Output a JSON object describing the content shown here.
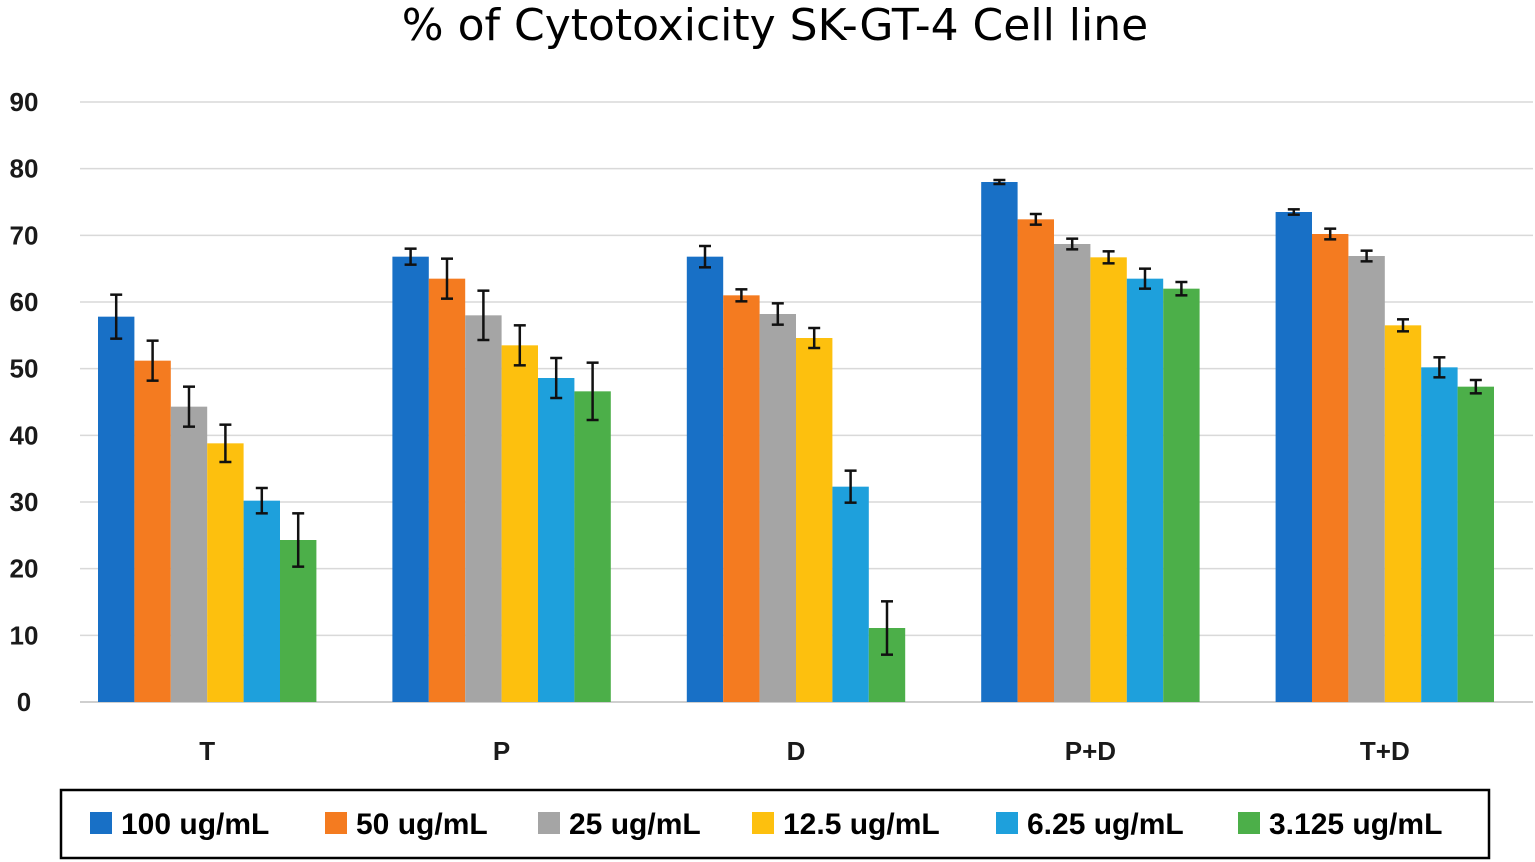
{
  "chart_data": {
    "type": "bar",
    "title": "% of Cytotoxicity SK-GT-4 Cell line",
    "xlabel": "",
    "ylabel": "",
    "ylim": [
      0,
      90
    ],
    "yticks": [
      0,
      10,
      20,
      30,
      40,
      50,
      60,
      70,
      80,
      90
    ],
    "grid": true,
    "legend_position": "bottom",
    "categories": [
      "T",
      "P",
      "D",
      "P+D",
      "T+D"
    ],
    "series": [
      {
        "name": "100 ug/mL",
        "color": "#1870C6",
        "values": [
          57.8,
          66.8,
          66.8,
          78.0,
          73.5
        ],
        "errors": [
          3.3,
          1.2,
          1.6,
          0.3,
          0.4
        ]
      },
      {
        "name": "50 ug/mL",
        "color": "#F47B20",
        "values": [
          51.2,
          63.5,
          61.0,
          72.4,
          70.2
        ],
        "errors": [
          3.0,
          3.0,
          0.9,
          0.8,
          0.8
        ]
      },
      {
        "name": "25 ug/mL",
        "color": "#A5A5A5",
        "values": [
          44.3,
          58.0,
          58.2,
          68.7,
          66.9
        ],
        "errors": [
          3.0,
          3.7,
          1.6,
          0.8,
          0.8
        ]
      },
      {
        "name": "12.5 ug/mL",
        "color": "#FDC00E",
        "values": [
          38.8,
          53.5,
          54.6,
          66.7,
          56.5
        ],
        "errors": [
          2.8,
          3.0,
          1.5,
          0.9,
          0.9
        ]
      },
      {
        "name": "6.25 ug/mL",
        "color": "#1EA0DC",
        "values": [
          30.2,
          48.6,
          32.3,
          63.5,
          50.2
        ],
        "errors": [
          1.9,
          3.0,
          2.4,
          1.5,
          1.5
        ]
      },
      {
        "name": "3.125 ug/mL",
        "color": "#4CAF49",
        "values": [
          24.3,
          46.6,
          11.1,
          62.0,
          47.3
        ],
        "errors": [
          4.0,
          4.3,
          4.0,
          1.0,
          1.0
        ]
      }
    ]
  }
}
